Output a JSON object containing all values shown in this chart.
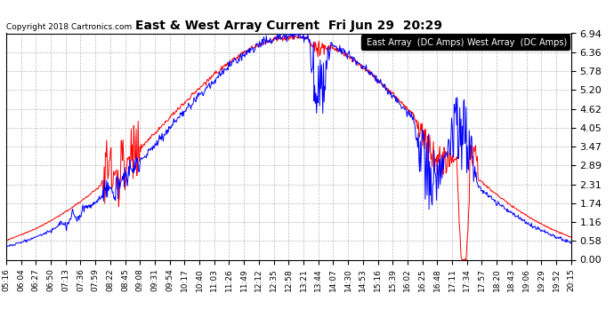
{
  "title": "East & West Array Current  Fri Jun 29  20:29",
  "copyright": "Copyright 2018 Cartronics.com",
  "legend_east": "East Array  (DC Amps)",
  "legend_west": "West Array  (DC Amps)",
  "east_color": "#0000FF",
  "west_color": "#FF0000",
  "background_color": "#FFFFFF",
  "plot_bg_color": "#FFFFFF",
  "grid_color": "#AAAAAA",
  "ylim": [
    0.0,
    6.94
  ],
  "yticks": [
    0.0,
    0.58,
    1.16,
    1.74,
    2.31,
    2.89,
    3.47,
    4.05,
    4.62,
    5.2,
    5.78,
    6.36,
    6.94
  ],
  "x_labels": [
    "05:16",
    "06:04",
    "06:27",
    "06:50",
    "07:13",
    "07:36",
    "07:59",
    "08:22",
    "08:45",
    "09:08",
    "09:31",
    "09:54",
    "10:17",
    "10:40",
    "11:03",
    "11:26",
    "11:49",
    "12:12",
    "12:35",
    "12:58",
    "13:21",
    "13:44",
    "14:07",
    "14:30",
    "14:53",
    "15:16",
    "15:39",
    "16:02",
    "16:25",
    "16:48",
    "17:11",
    "17:34",
    "17:57",
    "18:20",
    "18:43",
    "19:06",
    "19:29",
    "19:52",
    "20:15"
  ],
  "figsize": [
    6.9,
    3.75
  ],
  "dpi": 100
}
